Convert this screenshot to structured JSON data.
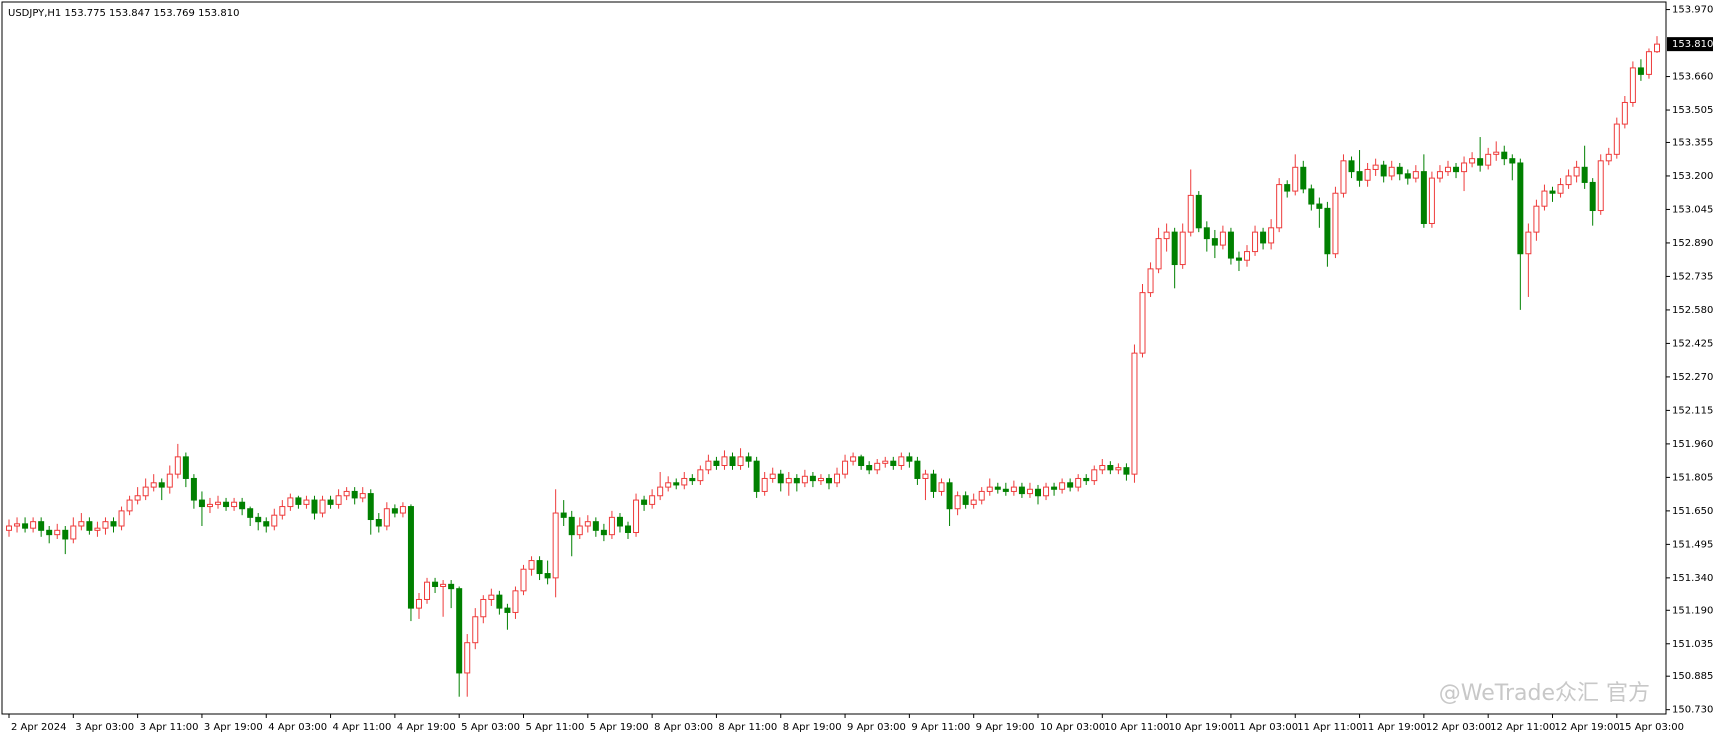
{
  "chart_data": {
    "type": "candlestick",
    "title": "USDJPY,H1",
    "title_values": "153.775 153.847 153.769 153.810",
    "up_color": "#ee3b3b",
    "down_color": "#008000",
    "categories": [
      "2 Apr 2024",
      null,
      null,
      null,
      null,
      null,
      null,
      null,
      "3 Apr 03:00",
      null,
      null,
      null,
      null,
      null,
      null,
      null,
      "3 Apr 11:00",
      null,
      null,
      null,
      null,
      null,
      null,
      null,
      "3 Apr 19:00",
      null,
      null,
      null,
      null,
      null,
      null,
      null,
      "4 Apr 03:00",
      null,
      null,
      null,
      null,
      null,
      null,
      null,
      "4 Apr 11:00",
      null,
      null,
      null,
      null,
      null,
      null,
      null,
      "4 Apr 19:00",
      null,
      null,
      null,
      null,
      null,
      null,
      null,
      "5 Apr 03:00",
      null,
      null,
      null,
      null,
      null,
      null,
      null,
      "5 Apr 11:00",
      null,
      null,
      null,
      null,
      null,
      null,
      null,
      "5 Apr 19:00",
      null,
      null,
      null,
      null,
      null,
      null,
      null,
      "8 Apr 03:00",
      null,
      null,
      null,
      null,
      null,
      null,
      null,
      "8 Apr 11:00",
      null,
      null,
      null,
      null,
      null,
      null,
      null,
      "8 Apr 19:00",
      null,
      null,
      null,
      null,
      null,
      null,
      null,
      "9 Apr 03:00",
      null,
      null,
      null,
      null,
      null,
      null,
      null,
      "9 Apr 11:00",
      null,
      null,
      null,
      null,
      null,
      null,
      null,
      "9 Apr 19:00",
      null,
      null,
      null,
      null,
      null,
      null,
      null,
      "10 Apr 03:00",
      null,
      null,
      null,
      null,
      null,
      null,
      null,
      "10 Apr 11:00",
      null,
      null,
      null,
      null,
      null,
      null,
      null,
      "10 Apr 19:00",
      null,
      null,
      null,
      null,
      null,
      null,
      null,
      "11 Apr 03:00",
      null,
      null,
      null,
      null,
      null,
      null,
      null,
      "11 Apr 11:00",
      null,
      null,
      null,
      null,
      null,
      null,
      null,
      "11 Apr 19:00",
      null,
      null,
      null,
      null,
      null,
      null,
      null,
      "12 Apr 03:00",
      null,
      null,
      null,
      null,
      null,
      null,
      null,
      "12 Apr 11:00",
      null,
      null,
      null,
      null,
      null,
      null,
      null,
      "12 Apr 19:00",
      null,
      null,
      null,
      null,
      null,
      null,
      null,
      "15 Apr 03:00",
      null,
      null,
      null,
      null,
      null
    ],
    "open": [
      151.56,
      151.58,
      151.59,
      151.57,
      151.6,
      151.56,
      151.54,
      151.56,
      151.52,
      151.58,
      151.6,
      151.56,
      151.57,
      151.6,
      151.58,
      151.65,
      151.7,
      151.72,
      151.76,
      151.78,
      151.76,
      151.82,
      151.9,
      151.8,
      151.7,
      151.67,
      151.68,
      151.69,
      151.67,
      151.69,
      151.66,
      151.62,
      151.6,
      151.58,
      151.63,
      151.67,
      151.71,
      151.68,
      151.7,
      151.64,
      151.7,
      151.68,
      151.72,
      151.74,
      151.71,
      151.73,
      151.61,
      151.58,
      151.66,
      151.64,
      151.67,
      151.2,
      151.24,
      151.32,
      151.3,
      151.31,
      151.29,
      150.9,
      151.04,
      151.16,
      151.24,
      151.26,
      151.2,
      151.18,
      151.28,
      151.38,
      151.42,
      151.36,
      151.34,
      151.64,
      151.62,
      151.54,
      151.58,
      151.6,
      151.56,
      151.54,
      151.62,
      151.58,
      151.55,
      151.7,
      151.68,
      151.72,
      151.76,
      151.78,
      151.77,
      151.8,
      151.79,
      151.84,
      151.88,
      151.86,
      151.9,
      151.86,
      151.9,
      151.88,
      151.74,
      151.8,
      151.82,
      151.78,
      151.8,
      151.78,
      151.81,
      151.79,
      151.8,
      151.78,
      151.82,
      151.88,
      151.9,
      151.86,
      151.84,
      151.87,
      151.88,
      151.86,
      151.9,
      151.88,
      151.8,
      151.82,
      151.74,
      151.78,
      151.66,
      151.72,
      151.68,
      151.7,
      151.74,
      151.76,
      151.75,
      151.74,
      151.76,
      151.73,
      151.75,
      151.72,
      151.76,
      151.75,
      151.78,
      151.76,
      151.8,
      151.79,
      151.84,
      151.86,
      151.84,
      151.85,
      151.82,
      152.38,
      152.66,
      152.77,
      152.91,
      152.94,
      152.79,
      152.94,
      153.11,
      152.96,
      152.91,
      152.88,
      152.94,
      152.82,
      152.81,
      152.85,
      152.94,
      152.89,
      152.96,
      153.16,
      153.13,
      153.24,
      153.14,
      153.07,
      153.05,
      152.84,
      153.12,
      153.27,
      153.22,
      153.18,
      153.23,
      153.25,
      153.2,
      153.24,
      153.21,
      153.19,
      153.22,
      152.98,
      153.19,
      153.22,
      153.24,
      153.22,
      153.26,
      153.28,
      153.25,
      153.3,
      153.31,
      153.28,
      153.26,
      152.84,
      152.94,
      153.06,
      153.13,
      153.12,
      153.16,
      153.2,
      153.24,
      153.17,
      153.04,
      153.27,
      153.3,
      153.44,
      153.54,
      153.7,
      153.67,
      153.775
    ],
    "high": [
      151.61,
      151.62,
      151.62,
      151.62,
      151.62,
      151.58,
      151.59,
      151.58,
      151.62,
      151.64,
      151.62,
      151.6,
      151.62,
      151.62,
      151.67,
      151.72,
      151.76,
      151.8,
      151.82,
      151.8,
      151.86,
      151.96,
      151.92,
      151.82,
      151.74,
      151.71,
      151.72,
      151.71,
      151.71,
      151.71,
      151.67,
      151.64,
      151.62,
      151.66,
      151.7,
      151.73,
      151.72,
      151.72,
      151.72,
      151.72,
      151.72,
      151.75,
      151.76,
      151.76,
      151.76,
      151.75,
      151.64,
      151.69,
      151.68,
      151.69,
      151.68,
      151.27,
      151.34,
      151.34,
      151.33,
      151.33,
      151.3,
      151.08,
      151.2,
      151.26,
      151.29,
      151.28,
      151.22,
      151.3,
      151.4,
      151.44,
      151.44,
      151.42,
      151.75,
      151.7,
      151.65,
      151.62,
      151.63,
      151.62,
      151.59,
      151.65,
      151.64,
      151.6,
      151.73,
      151.72,
      151.75,
      151.83,
      151.81,
      151.8,
      151.83,
      151.82,
      151.86,
      151.91,
      151.9,
      151.93,
      151.92,
      151.94,
      151.92,
      151.9,
      151.83,
      151.85,
      151.84,
      151.83,
      151.82,
      151.84,
      151.83,
      151.82,
      151.82,
      151.85,
      151.91,
      151.92,
      151.91,
      151.88,
      151.89,
      151.9,
      151.9,
      151.92,
      151.92,
      151.9,
      151.84,
      151.84,
      151.8,
      151.8,
      151.74,
      151.74,
      151.73,
      151.76,
      151.8,
      151.78,
      151.78,
      151.79,
      151.78,
      151.78,
      151.77,
      151.78,
      151.78,
      151.8,
      151.8,
      151.82,
      151.82,
      151.86,
      151.89,
      151.88,
      151.87,
      151.87,
      152.42,
      152.7,
      152.8,
      152.96,
      152.98,
      152.96,
      152.98,
      153.23,
      153.13,
      152.99,
      152.95,
      152.97,
      152.96,
      152.85,
      152.88,
      152.97,
      152.96,
      153.0,
      153.19,
      153.18,
      153.3,
      153.27,
      153.16,
      153.1,
      153.08,
      153.15,
      153.3,
      153.29,
      153.32,
      153.26,
      153.28,
      153.27,
      153.27,
      153.26,
      153.23,
      153.25,
      153.3,
      153.22,
      153.25,
      153.27,
      153.26,
      153.29,
      153.31,
      153.38,
      153.33,
      153.36,
      153.34,
      153.3,
      153.28,
      152.98,
      153.09,
      153.16,
      153.15,
      153.19,
      153.23,
      153.27,
      153.34,
      153.19,
      153.3,
      153.33,
      153.47,
      153.57,
      153.73,
      153.74,
      153.79,
      153.847
    ],
    "low": [
      151.53,
      151.55,
      151.55,
      151.55,
      151.53,
      151.5,
      151.52,
      151.45,
      151.5,
      151.56,
      151.54,
      151.53,
      151.54,
      151.55,
      151.56,
      151.63,
      151.68,
      151.7,
      151.74,
      151.7,
      151.73,
      151.8,
      151.76,
      151.66,
      151.58,
      151.64,
      151.66,
      151.65,
      151.65,
      151.63,
      151.58,
      151.56,
      151.55,
      151.56,
      151.61,
      151.65,
      151.66,
      151.66,
      151.61,
      151.62,
      151.66,
      151.66,
      151.7,
      151.68,
      151.69,
      151.54,
      151.55,
      151.56,
      151.62,
      151.62,
      151.14,
      151.15,
      151.22,
      151.27,
      151.16,
      151.2,
      150.79,
      150.79,
      151.01,
      151.13,
      151.21,
      151.17,
      151.1,
      151.15,
      151.26,
      151.35,
      151.33,
      151.31,
      151.25,
      151.58,
      151.44,
      151.52,
      151.55,
      151.53,
      151.51,
      151.52,
      151.55,
      151.52,
      151.53,
      151.65,
      151.66,
      151.7,
      151.74,
      151.75,
      151.75,
      151.77,
      151.77,
      151.82,
      151.84,
      151.84,
      151.84,
      151.84,
      151.85,
      151.71,
      151.72,
      151.78,
      151.74,
      151.72,
      151.74,
      151.76,
      151.76,
      151.77,
      151.75,
      151.76,
      151.8,
      151.86,
      151.84,
      151.82,
      151.82,
      151.85,
      151.84,
      151.84,
      151.85,
      151.77,
      151.7,
      151.71,
      151.72,
      151.58,
      151.63,
      151.66,
      151.66,
      151.68,
      151.72,
      151.73,
      151.72,
      151.72,
      151.71,
      151.71,
      151.68,
      151.7,
      151.72,
      151.73,
      151.74,
      151.74,
      151.77,
      151.77,
      151.82,
      151.82,
      151.82,
      151.79,
      151.78,
      152.36,
      152.64,
      152.75,
      152.85,
      152.68,
      152.77,
      152.92,
      152.94,
      152.85,
      152.82,
      152.86,
      152.79,
      152.76,
      152.78,
      152.83,
      152.86,
      152.86,
      152.94,
      153.1,
      153.11,
      153.12,
      153.04,
      152.96,
      152.78,
      152.82,
      153.1,
      153.19,
      153.15,
      153.15,
      153.2,
      153.17,
      153.18,
      153.18,
      153.16,
      153.17,
      152.96,
      152.96,
      153.17,
      153.2,
      153.19,
      153.13,
      153.24,
      153.22,
      153.23,
      153.27,
      153.25,
      153.18,
      152.58,
      152.64,
      152.9,
      153.04,
      153.08,
      153.1,
      153.14,
      153.17,
      153.14,
      152.97,
      153.02,
      153.25,
      153.28,
      153.42,
      153.52,
      153.64,
      153.65,
      153.769
    ],
    "close": [
      151.58,
      151.59,
      151.57,
      151.6,
      151.56,
      151.54,
      151.56,
      151.52,
      151.58,
      151.6,
      151.56,
      151.57,
      151.6,
      151.58,
      151.65,
      151.7,
      151.72,
      151.76,
      151.78,
      151.76,
      151.82,
      151.9,
      151.8,
      151.7,
      151.67,
      151.68,
      151.69,
      151.67,
      151.69,
      151.66,
      151.62,
      151.6,
      151.58,
      151.63,
      151.67,
      151.71,
      151.68,
      151.7,
      151.64,
      151.7,
      151.68,
      151.72,
      151.74,
      151.71,
      151.73,
      151.61,
      151.58,
      151.66,
      151.64,
      151.67,
      151.2,
      151.24,
      151.32,
      151.3,
      151.31,
      151.29,
      150.9,
      151.04,
      151.16,
      151.24,
      151.26,
      151.2,
      151.18,
      151.28,
      151.38,
      151.42,
      151.36,
      151.34,
      151.64,
      151.62,
      151.54,
      151.58,
      151.6,
      151.56,
      151.54,
      151.62,
      151.58,
      151.55,
      151.7,
      151.68,
      151.72,
      151.76,
      151.78,
      151.77,
      151.8,
      151.79,
      151.84,
      151.88,
      151.86,
      151.9,
      151.86,
      151.9,
      151.88,
      151.74,
      151.8,
      151.82,
      151.78,
      151.8,
      151.78,
      151.81,
      151.79,
      151.8,
      151.78,
      151.82,
      151.88,
      151.9,
      151.86,
      151.84,
      151.87,
      151.88,
      151.86,
      151.9,
      151.88,
      151.8,
      151.82,
      151.74,
      151.78,
      151.66,
      151.72,
      151.68,
      151.7,
      151.74,
      151.76,
      151.75,
      151.74,
      151.76,
      151.73,
      151.75,
      151.72,
      151.76,
      151.75,
      151.78,
      151.76,
      151.8,
      151.79,
      151.84,
      151.86,
      151.84,
      151.85,
      151.82,
      152.38,
      152.66,
      152.77,
      152.91,
      152.94,
      152.79,
      152.94,
      153.11,
      152.96,
      152.91,
      152.88,
      152.94,
      152.82,
      152.81,
      152.85,
      152.94,
      152.89,
      152.96,
      153.16,
      153.13,
      153.24,
      153.14,
      153.07,
      153.05,
      152.84,
      153.12,
      153.27,
      153.22,
      153.18,
      153.23,
      153.25,
      153.2,
      153.24,
      153.21,
      153.19,
      153.22,
      152.98,
      153.19,
      153.22,
      153.24,
      153.22,
      153.26,
      153.28,
      153.25,
      153.3,
      153.31,
      153.28,
      153.26,
      152.84,
      152.94,
      153.06,
      153.13,
      153.12,
      153.16,
      153.2,
      153.24,
      153.17,
      153.04,
      153.27,
      153.3,
      153.44,
      153.54,
      153.7,
      153.67,
      153.775,
      153.81
    ],
    "ylim": [
      150.71,
      154.005
    ],
    "yticks": [
      {
        "value": 150.73,
        "label": "150.730"
      },
      150.885,
      151.035,
      {
        "value": 151.19,
        "label": "151.190"
      },
      {
        "value": 151.34,
        "label": "151.340"
      },
      151.495,
      {
        "value": 151.65,
        "label": "151.650"
      },
      151.805,
      {
        "value": 151.96,
        "label": "151.960"
      },
      152.115,
      {
        "value": 152.27,
        "label": "152.270"
      },
      152.425,
      {
        "value": 152.58,
        "label": "152.580"
      },
      152.735,
      {
        "value": 152.89,
        "label": "152.890"
      },
      153.045,
      {
        "value": 153.2,
        "label": "153.200"
      },
      153.355,
      153.505,
      {
        "value": 153.66,
        "label": "153.660"
      },
      {
        "value": 153.97,
        "label": "153.970"
      }
    ],
    "current_price": {
      "value": 153.81,
      "label": "153.810"
    }
  },
  "watermark": "@WeTrade众汇 官方"
}
